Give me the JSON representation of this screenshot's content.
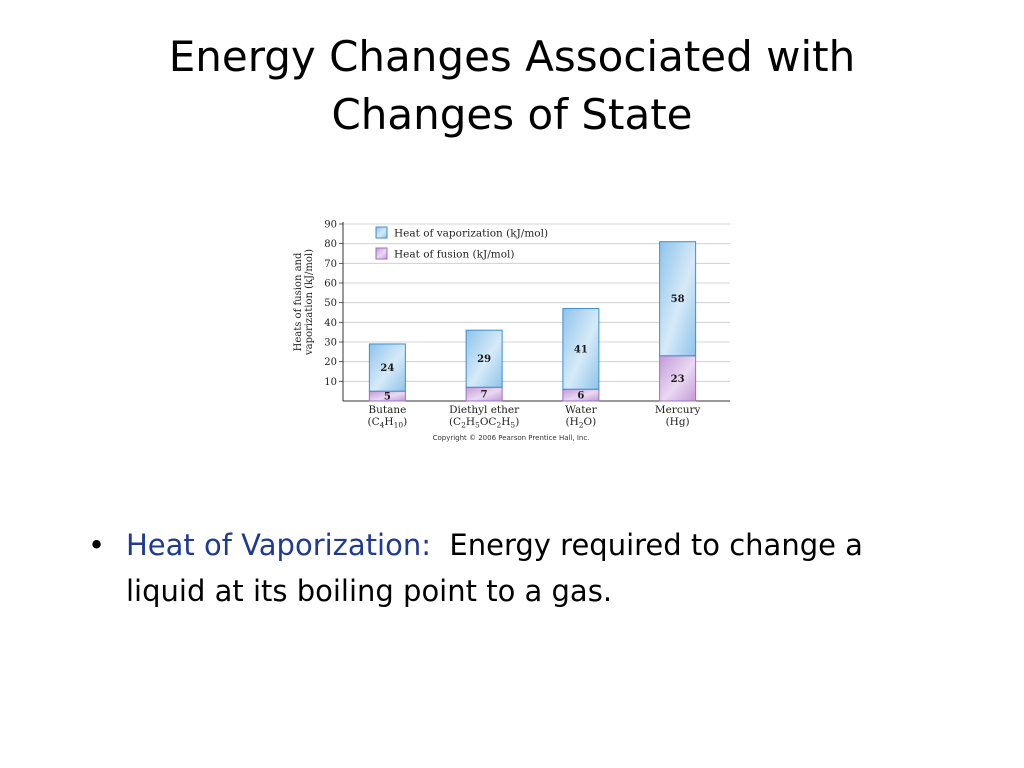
{
  "slide": {
    "title_line1": "Energy Changes Associated with",
    "title_line2": "Changes of State"
  },
  "bullet": {
    "symbol": "•",
    "term": "Heat of Vaporization:",
    "text": "Energy required to change a liquid at its boiling point to a gas."
  },
  "chart_data": {
    "type": "bar",
    "stacked": true,
    "categories": [
      "Butane",
      "Diethyl ether",
      "Water",
      "Mercury"
    ],
    "formulas": [
      [
        [
          "(C",
          ""
        ],
        [
          "4",
          "sub"
        ],
        [
          "H",
          ""
        ],
        [
          "10",
          "sub"
        ],
        [
          ")",
          ""
        ]
      ],
      [
        [
          "(C",
          ""
        ],
        [
          "2",
          "sub"
        ],
        [
          "H",
          ""
        ],
        [
          "5",
          "sub"
        ],
        [
          "OC",
          ""
        ],
        [
          "2",
          "sub"
        ],
        [
          "H",
          ""
        ],
        [
          "5",
          "sub"
        ],
        [
          ")",
          ""
        ]
      ],
      [
        [
          "(H",
          ""
        ],
        [
          "2",
          "sub"
        ],
        [
          "O)",
          ""
        ]
      ],
      [
        [
          "(Hg)",
          ""
        ]
      ]
    ],
    "series": [
      {
        "name": "Heat of fusion (kJ/mol)",
        "values": [
          5,
          7,
          6,
          23
        ],
        "color": "#c9a8dc",
        "stroke": "#9b6fbf"
      },
      {
        "name": "Heat of vaporization (kJ/mol)",
        "values": [
          24,
          29,
          41,
          58
        ],
        "color": "#a9d0ef",
        "stroke": "#3b8ed0"
      }
    ],
    "legend_order": [
      1,
      0
    ],
    "ylabel_line1": "Heats of fusion and",
    "ylabel_line2": "vaporization (kJ/mol)",
    "yticks": [
      10,
      20,
      30,
      40,
      50,
      60,
      70,
      80,
      90
    ],
    "ylim": [
      0,
      90
    ],
    "grid": true,
    "legend": "top-left",
    "copyright": "Copyright © 2006 Pearson Prentice Hall, Inc."
  }
}
